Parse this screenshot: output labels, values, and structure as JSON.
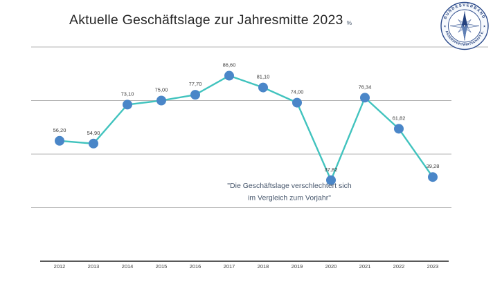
{
  "chart_data": {
    "type": "line",
    "title": "Aktuelle Geschäftslage zur Jahresmitte 2023",
    "unit": "%",
    "categories": [
      "2012",
      "2013",
      "2014",
      "2015",
      "2016",
      "2017",
      "2018",
      "2019",
      "2020",
      "2021",
      "2022",
      "2023"
    ],
    "values": [
      56.2,
      54.9,
      73.1,
      75.0,
      77.7,
      86.6,
      81.1,
      74.0,
      37.82,
      76.34,
      61.82,
      39.28
    ],
    "point_labels": [
      "56,20",
      "54,90",
      "73,10",
      "75,00",
      "77,70",
      "86,60",
      "81,10",
      "74,00",
      "37,82",
      "76,34",
      "61,82",
      "39,28"
    ],
    "xlabel": "",
    "ylabel": "",
    "ylim": [
      0,
      100
    ],
    "gridline_values": [
      25,
      50,
      75,
      100
    ],
    "grid": true,
    "legend": "none",
    "y_axis_labels_visible": false,
    "annotation": {
      "lines": [
        "\"Die Geschäftslage verschlechtert sich",
        "im Vergleich zum Vorjahr\""
      ]
    },
    "colors": {
      "line": "#41C3BE",
      "marker": "#4A86C8",
      "gridline": "#9a9a9a",
      "axis": "#595959",
      "point_label": "#3a3a3a",
      "x_tick_label": "#404040",
      "annotation": "#44546A"
    }
  },
  "logo": {
    "top_text": "BUNDESVERBAND",
    "bottom_text": "WASSERSPORTWIRTSCHAFT E.V.",
    "separator": "★",
    "color": "#24417e"
  }
}
